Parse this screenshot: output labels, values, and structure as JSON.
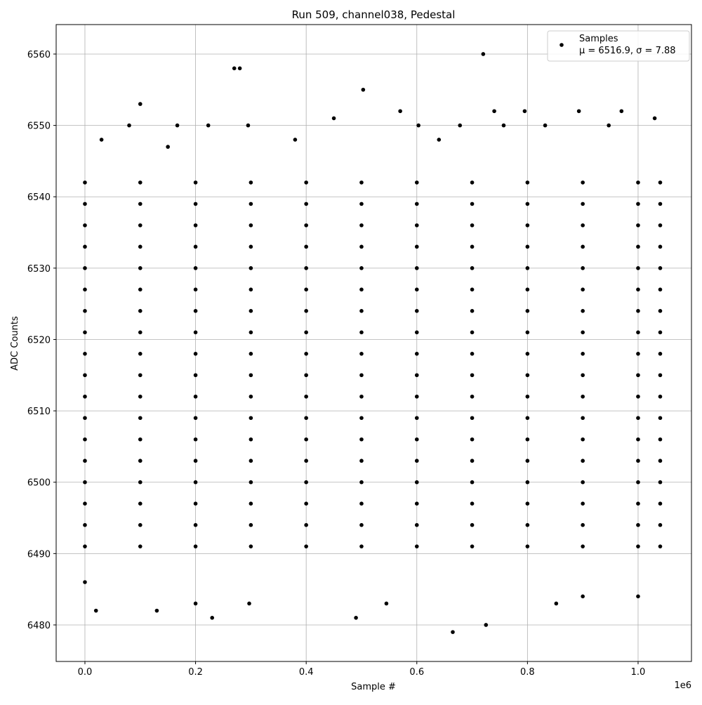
{
  "chart_data": {
    "type": "scatter",
    "title": "Run 509, channel038, Pedestal",
    "x_label": "Sample #",
    "y_label": "ADC Counts",
    "x_offset_label": "1e6",
    "xlim": [
      -0.052,
      1.0965
    ],
    "ylim": [
      6474.88,
      6564.13
    ],
    "xticks": [
      {
        "value": 0,
        "label": "0.0"
      },
      {
        "value": 0.2,
        "label": "0.2"
      },
      {
        "value": 0.4,
        "label": "0.4"
      },
      {
        "value": 0.6,
        "label": "0.6"
      },
      {
        "value": 0.8,
        "label": "0.8"
      },
      {
        "value": 1,
        "label": "1.0"
      }
    ],
    "yticks": [
      6480,
      6490,
      6500,
      6510,
      6520,
      6530,
      6540,
      6550,
      6560
    ],
    "grid": true,
    "legend": "upper right",
    "stats_label": "μ = 6516.9, σ = 7.88",
    "series": [
      {
        "name": "Samples",
        "color": "#000000",
        "x": [
          0,
          0.1,
          0.2,
          0.3,
          0.4,
          0.5,
          0.6,
          0.7,
          0.8,
          0.9,
          1.0,
          1.04,
          0,
          0.1,
          0.2,
          0.3,
          0.4,
          0.5,
          0.6,
          0.7,
          0.8,
          0.9,
          1.0,
          1.04,
          0,
          0.1,
          0.2,
          0.3,
          0.4,
          0.5,
          0.6,
          0.7,
          0.8,
          0.9,
          1.0,
          1.04,
          0,
          0.1,
          0.2,
          0.3,
          0.4,
          0.5,
          0.6,
          0.7,
          0.8,
          0.9,
          1.0,
          1.04,
          0,
          0.1,
          0.2,
          0.3,
          0.4,
          0.5,
          0.6,
          0.7,
          0.8,
          0.9,
          1.0,
          1.04,
          0,
          0.1,
          0.2,
          0.3,
          0.4,
          0.5,
          0.6,
          0.7,
          0.8,
          0.9,
          1.0,
          1.04,
          0,
          0.1,
          0.2,
          0.3,
          0.4,
          0.5,
          0.6,
          0.7,
          0.8,
          0.9,
          1.0,
          1.04,
          0,
          0.1,
          0.2,
          0.3,
          0.4,
          0.5,
          0.6,
          0.7,
          0.8,
          0.9,
          1.0,
          1.04,
          0,
          0.1,
          0.2,
          0.3,
          0.4,
          0.5,
          0.6,
          0.7,
          0.8,
          0.9,
          1.0,
          1.04,
          0,
          0.1,
          0.2,
          0.3,
          0.4,
          0.5,
          0.6,
          0.7,
          0.8,
          0.9,
          1.0,
          1.04,
          0,
          0.1,
          0.2,
          0.3,
          0.4,
          0.5,
          0.6,
          0.7,
          0.8,
          0.9,
          1.0,
          1.04,
          0,
          0.1,
          0.2,
          0.3,
          0.4,
          0.5,
          0.6,
          0.7,
          0.8,
          0.9,
          1.0,
          1.04,
          0,
          0.1,
          0.2,
          0.3,
          0.4,
          0.5,
          0.6,
          0.7,
          0.8,
          0.9,
          1.0,
          1.04,
          0,
          0.1,
          0.2,
          0.3,
          0.4,
          0.5,
          0.6,
          0.7,
          0.8,
          0.9,
          1.0,
          1.04,
          0,
          0.1,
          0.2,
          0.3,
          0.4,
          0.5,
          0.6,
          0.7,
          0.8,
          0.9,
          1.0,
          1.04,
          0,
          0.1,
          0.2,
          0.3,
          0.4,
          0.5,
          0.6,
          0.7,
          0.8,
          0.9,
          1.0,
          1.04,
          0,
          0.1,
          0.2,
          0.3,
          0.4,
          0.5,
          0.6,
          0.7,
          0.8,
          0.9,
          1.0,
          1.04,
          0,
          0.1,
          0.2,
          0.3,
          0.4,
          0.5,
          0.6,
          0.7,
          0.8,
          0.9,
          1.0,
          1.04,
          0.0,
          0.02,
          0.13,
          0.23,
          0.49,
          0.665,
          0.725,
          0.545,
          0.2,
          0.297,
          0.852,
          0.9,
          1.0,
          0.1,
          0.27,
          0.28,
          0.503,
          0.72,
          0.57,
          0.74,
          0.795,
          0.893,
          0.97,
          0.08,
          0.167,
          0.223,
          0.295,
          0.603,
          0.678,
          0.757,
          0.832,
          0.947,
          0.45,
          1.03,
          0.03,
          0.38,
          0.15,
          0.64
        ],
        "values": [
          6491,
          6491,
          6491,
          6491,
          6491,
          6491,
          6491,
          6491,
          6491,
          6491,
          6491,
          6491,
          6494,
          6494,
          6494,
          6494,
          6494,
          6494,
          6494,
          6494,
          6494,
          6494,
          6494,
          6494,
          6497,
          6497,
          6497,
          6497,
          6497,
          6497,
          6497,
          6497,
          6497,
          6497,
          6497,
          6497,
          6500,
          6500,
          6500,
          6500,
          6500,
          6500,
          6500,
          6500,
          6500,
          6500,
          6500,
          6500,
          6503,
          6503,
          6503,
          6503,
          6503,
          6503,
          6503,
          6503,
          6503,
          6503,
          6503,
          6503,
          6506,
          6506,
          6506,
          6506,
          6506,
          6506,
          6506,
          6506,
          6506,
          6506,
          6506,
          6506,
          6509,
          6509,
          6509,
          6509,
          6509,
          6509,
          6509,
          6509,
          6509,
          6509,
          6509,
          6509,
          6512,
          6512,
          6512,
          6512,
          6512,
          6512,
          6512,
          6512,
          6512,
          6512,
          6512,
          6512,
          6515,
          6515,
          6515,
          6515,
          6515,
          6515,
          6515,
          6515,
          6515,
          6515,
          6515,
          6515,
          6518,
          6518,
          6518,
          6518,
          6518,
          6518,
          6518,
          6518,
          6518,
          6518,
          6518,
          6518,
          6521,
          6521,
          6521,
          6521,
          6521,
          6521,
          6521,
          6521,
          6521,
          6521,
          6521,
          6521,
          6524,
          6524,
          6524,
          6524,
          6524,
          6524,
          6524,
          6524,
          6524,
          6524,
          6524,
          6524,
          6527,
          6527,
          6527,
          6527,
          6527,
          6527,
          6527,
          6527,
          6527,
          6527,
          6527,
          6527,
          6530,
          6530,
          6530,
          6530,
          6530,
          6530,
          6530,
          6530,
          6530,
          6530,
          6530,
          6530,
          6533,
          6533,
          6533,
          6533,
          6533,
          6533,
          6533,
          6533,
          6533,
          6533,
          6533,
          6533,
          6536,
          6536,
          6536,
          6536,
          6536,
          6536,
          6536,
          6536,
          6536,
          6536,
          6536,
          6536,
          6539,
          6539,
          6539,
          6539,
          6539,
          6539,
          6539,
          6539,
          6539,
          6539,
          6539,
          6539,
          6542,
          6542,
          6542,
          6542,
          6542,
          6542,
          6542,
          6542,
          6542,
          6542,
          6542,
          6542,
          6486,
          6482,
          6482,
          6481,
          6481,
          6479,
          6480,
          6483,
          6483,
          6483,
          6483,
          6484,
          6484,
          6553,
          6558,
          6558,
          6555,
          6560,
          6552,
          6552,
          6552,
          6552,
          6552,
          6550,
          6550,
          6550,
          6550,
          6550,
          6550,
          6550,
          6550,
          6550,
          6551,
          6551,
          6548,
          6548,
          6547,
          6548
        ]
      }
    ]
  }
}
